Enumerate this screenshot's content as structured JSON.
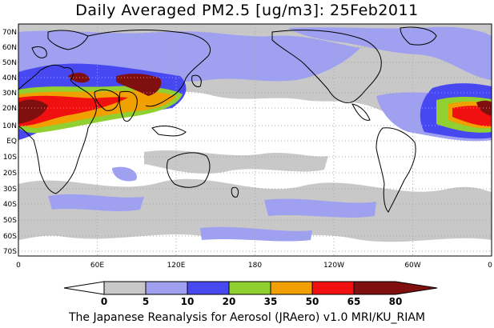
{
  "title": "Daily Averaged PM2.5 [ug/m3]: 25Feb2011",
  "footer": "The Japanese Reanalysis for Aerosol (JRAero) v1.0 MRI/KU_RIAM",
  "lat_labels": [
    "70N",
    "60N",
    "50N",
    "40N",
    "30N",
    "20N",
    "10N",
    "EQ",
    "10S",
    "20S",
    "30S",
    "40S",
    "50S",
    "60S",
    "70S"
  ],
  "lon_labels": [
    "0",
    "60E",
    "120E",
    "180",
    "120W",
    "60W",
    "0"
  ],
  "colorbar": {
    "ticks": [
      "0",
      "5",
      "10",
      "20",
      "35",
      "50",
      "65",
      "80"
    ],
    "colors": [
      "#ffffff",
      "#c8c8c8",
      "#a0a0f0",
      "#4848f0",
      "#90d030",
      "#f0a000",
      "#f01010",
      "#801010"
    ]
  }
}
